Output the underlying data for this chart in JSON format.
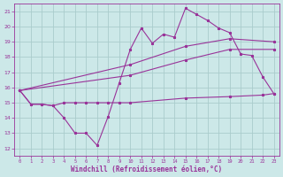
{
  "xlabel": "Windchill (Refroidissement éolien,°C)",
  "bg_color": "#cce8e8",
  "grid_color": "#aacccc",
  "line_color1": "#993399",
  "line_color2": "#993399",
  "line_color3": "#993399",
  "line_color4": "#993399",
  "ylim": [
    11.5,
    21.5
  ],
  "xlim": [
    -0.5,
    23.5
  ],
  "yticks": [
    12,
    13,
    14,
    15,
    16,
    17,
    18,
    19,
    20,
    21
  ],
  "xticks": [
    0,
    1,
    2,
    3,
    4,
    5,
    6,
    7,
    8,
    9,
    10,
    11,
    12,
    13,
    14,
    15,
    16,
    17,
    18,
    19,
    20,
    21,
    22,
    23
  ],
  "line1_x": [
    0,
    1,
    2,
    3,
    4,
    5,
    6,
    7,
    8,
    9,
    10,
    11,
    12,
    13,
    14,
    15,
    16,
    17,
    18,
    19,
    20,
    21,
    22,
    23
  ],
  "line1_y": [
    15.8,
    14.9,
    14.9,
    14.8,
    14.0,
    13.0,
    13.0,
    12.2,
    14.1,
    16.3,
    18.5,
    19.9,
    18.9,
    19.5,
    19.3,
    21.2,
    20.8,
    20.4,
    19.9,
    19.6,
    18.2,
    18.1,
    16.7,
    15.6
  ],
  "line2_x": [
    0,
    10,
    15,
    19,
    23
  ],
  "line2_y": [
    15.8,
    17.5,
    18.7,
    19.2,
    19.0
  ],
  "line3_x": [
    0,
    10,
    15,
    19,
    23
  ],
  "line3_y": [
    15.8,
    16.8,
    17.8,
    18.5,
    18.5
  ],
  "line4_x": [
    0,
    1,
    2,
    3,
    4,
    5,
    6,
    7,
    8,
    9,
    10,
    15,
    19,
    22,
    23
  ],
  "line4_y": [
    15.8,
    14.9,
    14.9,
    14.8,
    15.0,
    15.0,
    15.0,
    15.0,
    15.0,
    15.0,
    15.0,
    15.3,
    15.4,
    15.5,
    15.6
  ]
}
